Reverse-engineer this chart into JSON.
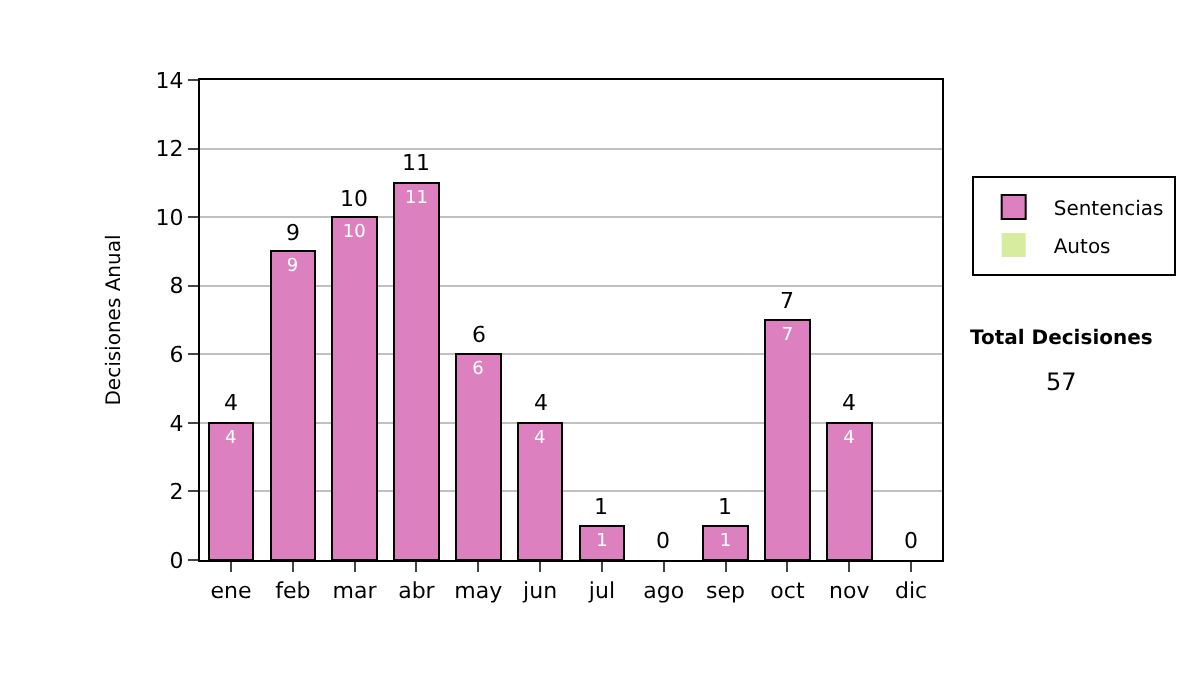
{
  "chart_data": {
    "type": "bar",
    "stacked": true,
    "ylabel": "Decisiones Anual",
    "categories": [
      "ene",
      "feb",
      "mar",
      "abr",
      "may",
      "jun",
      "jul",
      "ago",
      "sep",
      "oct",
      "nov",
      "dic"
    ],
    "series": [
      {
        "name": "Sentencias",
        "color": "#dd80c0",
        "values": [
          4,
          9,
          10,
          11,
          6,
          4,
          1,
          0,
          1,
          7,
          4,
          0
        ],
        "value_labels": [
          "4",
          "9",
          "10",
          "11",
          "6",
          "4",
          "1",
          null,
          "1",
          "7",
          "4",
          null
        ]
      },
      {
        "name": "Autos",
        "color": "#d8eca0",
        "values": [
          0,
          0,
          0,
          0,
          0,
          0,
          0,
          0,
          0,
          0,
          0,
          0
        ]
      }
    ],
    "totals": [
      "4",
      "9",
      "10",
      "11",
      "6",
      "4",
      "1",
      "0",
      "1",
      "7",
      "4",
      "0"
    ],
    "ylim": [
      0,
      14
    ],
    "yticks": [
      0,
      2,
      4,
      6,
      8,
      10,
      12,
      14
    ],
    "grid": "y",
    "legend": "right",
    "annotations": [
      "Total Decisiones",
      "57"
    ]
  }
}
